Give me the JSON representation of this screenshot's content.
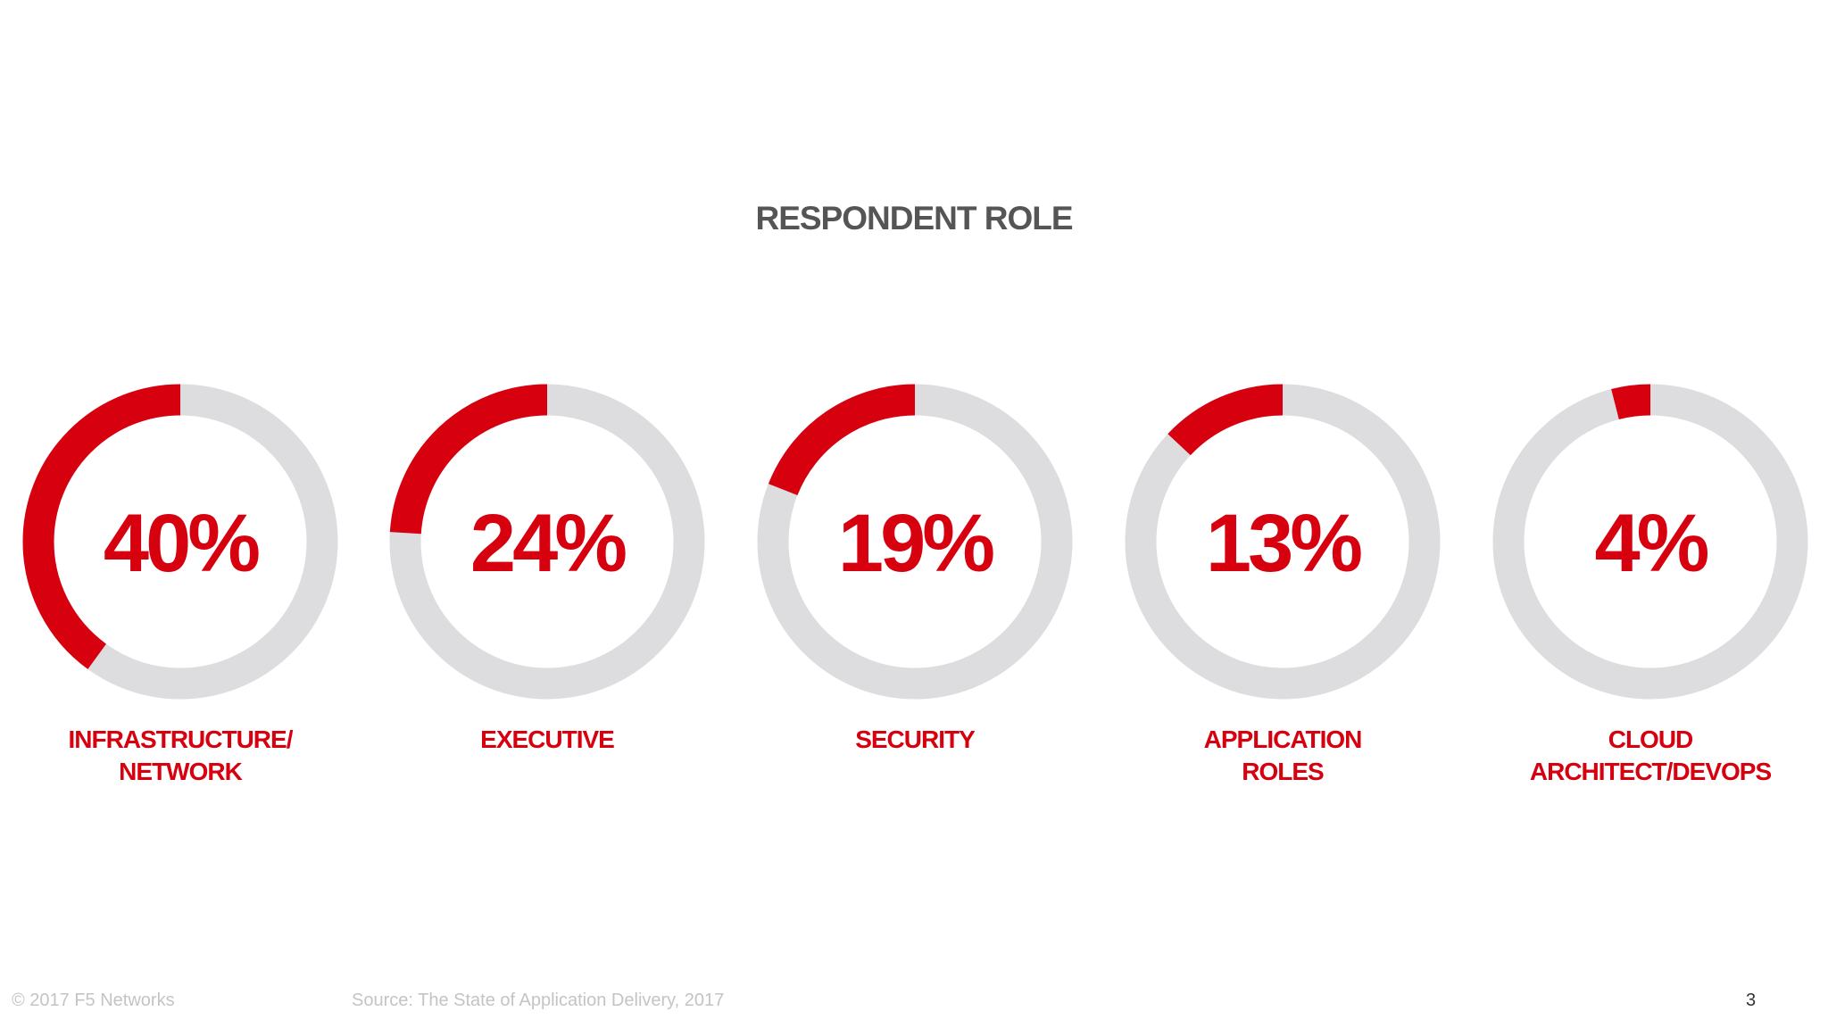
{
  "slide": {
    "title": "RESPONDENT ROLE",
    "footer_copyright": "© 2017 F5 Networks",
    "footer_source": "Source: The State of Application Delivery, 2017",
    "page_number": "3"
  },
  "colors": {
    "accent": "#d7000f",
    "track": "#dddcdf",
    "title": "#555555",
    "footer": "#c4c4c4"
  },
  "chart_data": {
    "type": "pie",
    "title": "RESPONDENT ROLE",
    "charts": [
      {
        "label_lines": [
          "INFRASTRUCTURE/",
          "NETWORK"
        ],
        "value": 40,
        "value_label": "40%"
      },
      {
        "label_lines": [
          "EXECUTIVE"
        ],
        "value": 24,
        "value_label": "24%"
      },
      {
        "label_lines": [
          "SECURITY"
        ],
        "value": 19,
        "value_label": "19%"
      },
      {
        "label_lines": [
          "APPLICATION",
          "ROLES"
        ],
        "value": 13,
        "value_label": "13%"
      },
      {
        "label_lines": [
          "CLOUD",
          "ARCHITECT/DEVOPS"
        ],
        "value": 4,
        "value_label": "4%"
      }
    ]
  }
}
